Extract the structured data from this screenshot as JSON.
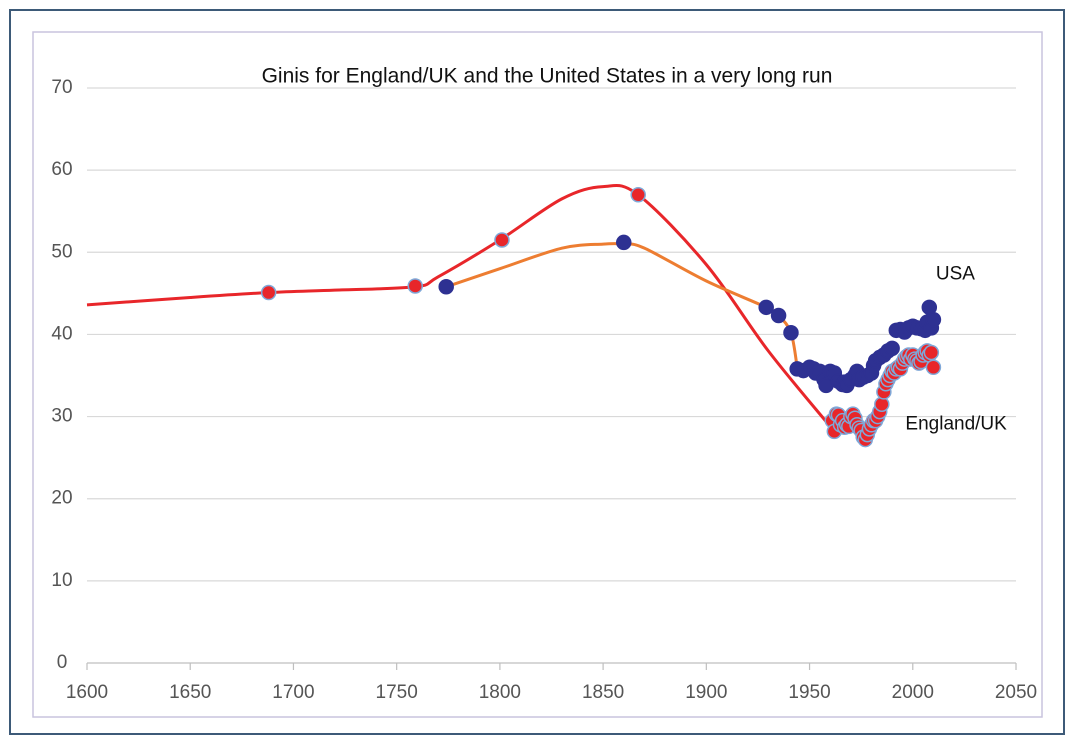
{
  "chart_data": {
    "type": "line",
    "title": "Ginis for England/UK and the United States in a very long run",
    "xlim": [
      1600,
      2050
    ],
    "xticks": [
      1600,
      1650,
      1700,
      1750,
      1800,
      1850,
      1900,
      1950,
      2000,
      2050
    ],
    "ylim": [
      0,
      70
    ],
    "yticks": [
      0,
      10,
      20,
      30,
      40,
      50,
      60,
      70
    ],
    "grid": true,
    "series": [
      {
        "name": "England/UK",
        "color": "#e8262a",
        "x": [
          1600,
          1650,
          1688,
          1720,
          1759,
          1770,
          1800,
          1830,
          1850,
          1867,
          1900,
          1930,
          1961
        ],
        "values": [
          43.6,
          44.5,
          45.1,
          45.4,
          45.8,
          47,
          51.5,
          56.5,
          58,
          57,
          48.5,
          38,
          28.5
        ],
        "points": {
          "color": "#e8262a",
          "edge": "#7fa8d8",
          "x": [
            1688,
            1759,
            1801,
            1867,
            1961,
            1962,
            1963,
            1964,
            1965,
            1966,
            1967,
            1968,
            1969,
            1970,
            1971,
            1972,
            1973,
            1974,
            1975,
            1976,
            1977,
            1978,
            1979,
            1980,
            1981,
            1982,
            1983,
            1984,
            1985,
            1986,
            1987,
            1988,
            1989,
            1990,
            1991,
            1992,
            1993,
            1994,
            1995,
            1996,
            1997,
            1998,
            1999,
            2000,
            2001,
            2002,
            2003,
            2004,
            2005,
            2006,
            2007,
            2008,
            2009,
            2010
          ],
          "values": [
            45.1,
            45.9,
            51.5,
            57,
            29.5,
            28.2,
            30.3,
            30.2,
            29,
            29.5,
            28.7,
            29,
            28.8,
            30,
            30.3,
            29.8,
            29,
            28.6,
            28.3,
            27.5,
            27.2,
            27.8,
            28.5,
            29,
            29.5,
            29.5,
            30,
            30.6,
            31.5,
            33,
            34,
            34.5,
            35,
            35.5,
            35.3,
            35.8,
            36,
            35.8,
            36.5,
            37,
            37.3,
            37.5,
            37,
            37.5,
            37,
            36.8,
            36.5,
            36.7,
            37.5,
            37.8,
            38,
            37.5,
            37.8,
            36
          ]
        }
      },
      {
        "name": "USA",
        "color": "#ed7d31",
        "x": [
          1774,
          1800,
          1830,
          1850,
          1860,
          1870,
          1900,
          1929,
          1935,
          1941,
          1944
        ],
        "values": [
          45.8,
          48,
          50.5,
          51,
          51,
          50.5,
          46.5,
          43.3,
          42.3,
          40.2,
          36
        ],
        "points": {
          "color": "#2e3192",
          "edge": "#2e3192",
          "x": [
            1774,
            1860,
            1929,
            1935,
            1941,
            1944,
            1947,
            1950,
            1952,
            1953,
            1955,
            1957,
            1958,
            1960,
            1962,
            1964,
            1966,
            1967,
            1968,
            1970,
            1972,
            1973,
            1974,
            1976,
            1978,
            1980,
            1981,
            1982,
            1984,
            1986,
            1988,
            1990,
            1992,
            1994,
            1996,
            1998,
            2000,
            2002,
            2004,
            2006,
            2007,
            2008,
            2009,
            2010
          ],
          "values": [
            45.8,
            51.2,
            43.3,
            42.3,
            40.2,
            35.8,
            35.6,
            36,
            35.8,
            35.3,
            35.5,
            34.5,
            33.8,
            35.5,
            35.3,
            34.3,
            33.9,
            34.2,
            33.8,
            34.5,
            35,
            35.5,
            34.5,
            34.8,
            35,
            35.3,
            36.2,
            36.8,
            37.2,
            37.5,
            38,
            38.3,
            40.5,
            40.6,
            40.3,
            40.8,
            41,
            40.8,
            40.7,
            40.5,
            41.5,
            43.3,
            40.8,
            41.8
          ]
        }
      }
    ]
  }
}
